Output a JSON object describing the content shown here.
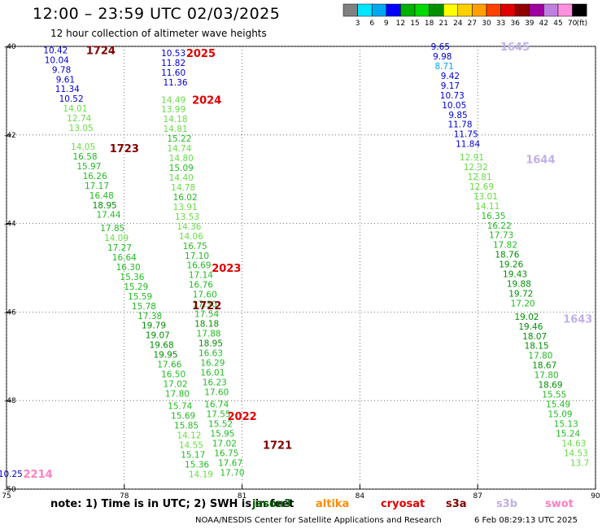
{
  "header": {
    "title": "12:00 – 23:59 UTC 02/03/2025",
    "subtitle": "12 hour collection of altimeter wave heights"
  },
  "color_scale": {
    "labels": [
      "3",
      "6",
      "9",
      "12",
      "15",
      "18",
      "21",
      "24",
      "27",
      "30",
      "33",
      "36",
      "39",
      "42",
      "45",
      "70"
    ],
    "unit": "(ft)",
    "colors": [
      "#808080",
      "#00e5ff",
      "#00a8f0",
      "#0000ff",
      "#00b000",
      "#00d800",
      "#009000",
      "#ffff00",
      "#ffd000",
      "#ffa000",
      "#ff4000",
      "#e00000",
      "#900000",
      "#a000a0",
      "#c080e0",
      "#ff90e0",
      "#000000"
    ]
  },
  "axes": {
    "lat_labels": [
      {
        "text": "-40",
        "lat": -40
      },
      {
        "text": "-42",
        "lat": -42
      },
      {
        "text": "-44",
        "lat": -44
      },
      {
        "text": "-46",
        "lat": -46
      },
      {
        "text": "-48",
        "lat": -48
      },
      {
        "text": "-50",
        "lat": -50
      }
    ],
    "lon_labels": [
      {
        "text": "75",
        "lon": 75
      },
      {
        "text": "78",
        "lon": 78
      },
      {
        "text": "81",
        "lon": 81
      },
      {
        "text": "84",
        "lon": 84
      },
      {
        "text": "87",
        "lon": 87
      },
      {
        "text": "90",
        "lon": 90
      }
    ]
  },
  "time_labels": [
    {
      "text": "1724",
      "lon": 77.4,
      "lat": -40.08,
      "color": "#800000"
    },
    {
      "text": "2025",
      "lon": 79.95,
      "lat": -40.15,
      "color": "#e00000"
    },
    {
      "text": "2024",
      "lon": 80.1,
      "lat": -41.2,
      "color": "#e00000"
    },
    {
      "text": "1723",
      "lon": 78.0,
      "lat": -42.3,
      "color": "#800000"
    },
    {
      "text": "2023",
      "lon": 80.6,
      "lat": -45.0,
      "color": "#e00000"
    },
    {
      "text": "1722",
      "lon": 80.1,
      "lat": -45.85,
      "color": "#800000"
    },
    {
      "text": "2022",
      "lon": 81.0,
      "lat": -48.35,
      "color": "#e00000"
    },
    {
      "text": "1721",
      "lon": 81.9,
      "lat": -49.0,
      "color": "#800000"
    },
    {
      "text": "1645",
      "lon": 87.95,
      "lat": -40.0,
      "color": "#c0b0e8"
    },
    {
      "text": "1644",
      "lon": 88.6,
      "lat": -42.55,
      "color": "#c0b0e8"
    },
    {
      "text": "1643",
      "lon": 89.55,
      "lat": -46.15,
      "color": "#c0b0e8"
    },
    {
      "text": "2214",
      "lon": 75.8,
      "lat": -49.65,
      "color": "#ff80c0"
    }
  ],
  "tracks": [
    {
      "name": "1724",
      "points": [
        {
          "v": "10.42",
          "lon": 76.25,
          "lat": -40.08
        },
        {
          "v": "10.04",
          "lon": 76.28,
          "lat": -40.3
        },
        {
          "v": "9.78",
          "lon": 76.4,
          "lat": -40.52
        },
        {
          "v": "9.61",
          "lon": 76.5,
          "lat": -40.74
        },
        {
          "v": "11.34",
          "lon": 76.55,
          "lat": -40.96
        },
        {
          "v": "10.52",
          "lon": 76.65,
          "lat": -41.18
        },
        {
          "v": "14.01",
          "lon": 76.75,
          "lat": -41.4
        },
        {
          "v": "12.74",
          "lon": 76.85,
          "lat": -41.62
        },
        {
          "v": "13.05",
          "lon": 76.9,
          "lat": -41.84
        },
        {
          "v": "14.05",
          "lon": 76.95,
          "lat": -42.26
        },
        {
          "v": "16.58",
          "lon": 77.0,
          "lat": -42.48
        },
        {
          "v": "15.97",
          "lon": 77.1,
          "lat": -42.7
        },
        {
          "v": "16.26",
          "lon": 77.25,
          "lat": -42.92
        },
        {
          "v": "17.17",
          "lon": 77.3,
          "lat": -43.14
        },
        {
          "v": "16.48",
          "lon": 77.42,
          "lat": -43.36
        },
        {
          "v": "18.95",
          "lon": 77.5,
          "lat": -43.58
        },
        {
          "v": "17.44",
          "lon": 77.6,
          "lat": -43.8
        },
        {
          "v": "17.85",
          "lon": 77.7,
          "lat": -44.1
        },
        {
          "v": "14.09",
          "lon": 77.8,
          "lat": -44.32
        },
        {
          "v": "17.27",
          "lon": 77.88,
          "lat": -44.54
        },
        {
          "v": "16.64",
          "lon": 78.0,
          "lat": -44.76
        },
        {
          "v": "16.30",
          "lon": 78.1,
          "lat": -44.98
        },
        {
          "v": "15.36",
          "lon": 78.2,
          "lat": -45.2
        },
        {
          "v": "15.29",
          "lon": 78.3,
          "lat": -45.42
        },
        {
          "v": "15.59",
          "lon": 78.4,
          "lat": -45.64
        },
        {
          "v": "15.78",
          "lon": 78.5,
          "lat": -45.86
        },
        {
          "v": "17.38",
          "lon": 78.65,
          "lat": -46.08
        },
        {
          "v": "19.79",
          "lon": 78.75,
          "lat": -46.3
        },
        {
          "v": "19.07",
          "lon": 78.85,
          "lat": -46.52
        },
        {
          "v": "19.68",
          "lon": 78.95,
          "lat": -46.74
        },
        {
          "v": "19.95",
          "lon": 79.05,
          "lat": -46.96
        },
        {
          "v": "17.66",
          "lon": 79.15,
          "lat": -47.18
        },
        {
          "v": "16.50",
          "lon": 79.25,
          "lat": -47.4
        },
        {
          "v": "17.02",
          "lon": 79.3,
          "lat": -47.62
        },
        {
          "v": "17.80",
          "lon": 79.35,
          "lat": -47.84
        },
        {
          "v": "15.74",
          "lon": 79.42,
          "lat": -48.12
        },
        {
          "v": "15.69",
          "lon": 79.5,
          "lat": -48.34
        },
        {
          "v": "15.85",
          "lon": 79.58,
          "lat": -48.56
        },
        {
          "v": "14.12",
          "lon": 79.65,
          "lat": -48.78
        },
        {
          "v": "14.55",
          "lon": 79.7,
          "lat": -49.0
        },
        {
          "v": "15.17",
          "lon": 79.75,
          "lat": -49.22
        },
        {
          "v": "15.36",
          "lon": 79.85,
          "lat": -49.44
        },
        {
          "v": "14.19",
          "lon": 79.95,
          "lat": -49.66
        }
      ]
    },
    {
      "name": "2025",
      "points": [
        {
          "v": "10.53",
          "lon": 79.25,
          "lat": -40.15
        },
        {
          "v": "11.82",
          "lon": 79.25,
          "lat": -40.37
        },
        {
          "v": "11.60",
          "lon": 79.25,
          "lat": -40.59
        },
        {
          "v": "11.36",
          "lon": 79.3,
          "lat": -40.81
        },
        {
          "v": "14.49",
          "lon": 79.25,
          "lat": -41.2
        },
        {
          "v": "13.99",
          "lon": 79.25,
          "lat": -41.42
        },
        {
          "v": "14.18",
          "lon": 79.3,
          "lat": -41.64
        },
        {
          "v": "14.81",
          "lon": 79.3,
          "lat": -41.86
        },
        {
          "v": "15.22",
          "lon": 79.4,
          "lat": -42.08
        },
        {
          "v": "14.74",
          "lon": 79.4,
          "lat": -42.3
        },
        {
          "v": "14.80",
          "lon": 79.45,
          "lat": -42.52
        },
        {
          "v": "15.09",
          "lon": 79.45,
          "lat": -42.74
        },
        {
          "v": "14.40",
          "lon": 79.45,
          "lat": -42.96
        },
        {
          "v": "14.78",
          "lon": 79.5,
          "lat": -43.18
        },
        {
          "v": "16.02",
          "lon": 79.55,
          "lat": -43.4
        },
        {
          "v": "13.91",
          "lon": 79.55,
          "lat": -43.62
        },
        {
          "v": "13.53",
          "lon": 79.6,
          "lat": -43.84
        },
        {
          "v": "14.36",
          "lon": 79.65,
          "lat": -44.06
        },
        {
          "v": "14.06",
          "lon": 79.7,
          "lat": -44.28
        },
        {
          "v": "16.75",
          "lon": 79.8,
          "lat": -44.5
        },
        {
          "v": "17.10",
          "lon": 79.85,
          "lat": -44.72
        },
        {
          "v": "16.69",
          "lon": 79.9,
          "lat": -44.94
        },
        {
          "v": "17.14",
          "lon": 79.95,
          "lat": -45.16
        },
        {
          "v": "16.76",
          "lon": 79.95,
          "lat": -45.38
        },
        {
          "v": "17.60",
          "lon": 80.05,
          "lat": -45.6
        },
        {
          "v": "17.30",
          "lon": 80.05,
          "lat": -45.82
        },
        {
          "v": "17.54",
          "lon": 80.1,
          "lat": -46.04
        },
        {
          "v": "18.18",
          "lon": 80.1,
          "lat": -46.26
        },
        {
          "v": "17.88",
          "lon": 80.15,
          "lat": -46.48
        },
        {
          "v": "18.95",
          "lon": 80.2,
          "lat": -46.7
        },
        {
          "v": "16.63",
          "lon": 80.2,
          "lat": -46.92
        },
        {
          "v": "16.29",
          "lon": 80.25,
          "lat": -47.14
        },
        {
          "v": "16.01",
          "lon": 80.25,
          "lat": -47.36
        },
        {
          "v": "16.23",
          "lon": 80.3,
          "lat": -47.58
        },
        {
          "v": "17.60",
          "lon": 80.35,
          "lat": -47.8
        },
        {
          "v": "16.74",
          "lon": 80.35,
          "lat": -48.08
        },
        {
          "v": "17.55",
          "lon": 80.4,
          "lat": -48.3
        },
        {
          "v": "15.52",
          "lon": 80.45,
          "lat": -48.52
        },
        {
          "v": "15.95",
          "lon": 80.5,
          "lat": -48.74
        },
        {
          "v": "17.02",
          "lon": 80.55,
          "lat": -48.96
        },
        {
          "v": "16.75",
          "lon": 80.6,
          "lat": -49.18
        },
        {
          "v": "17.67",
          "lon": 80.7,
          "lat": -49.4
        },
        {
          "v": "17.70",
          "lon": 80.75,
          "lat": -49.62
        }
      ]
    },
    {
      "name": "1645",
      "points": [
        {
          "v": "9.65",
          "lon": 86.05,
          "lat": -40.0
        },
        {
          "v": "9.98",
          "lon": 86.1,
          "lat": -40.22
        },
        {
          "v": "8.71",
          "lon": 86.15,
          "lat": -40.44
        },
        {
          "v": "9.42",
          "lon": 86.3,
          "lat": -40.66
        },
        {
          "v": "9.17",
          "lon": 86.3,
          "lat": -40.88
        },
        {
          "v": "10.73",
          "lon": 86.35,
          "lat": -41.1
        },
        {
          "v": "10.05",
          "lon": 86.4,
          "lat": -41.32
        },
        {
          "v": "9.85",
          "lon": 86.5,
          "lat": -41.54
        },
        {
          "v": "11.78",
          "lon": 86.55,
          "lat": -41.76
        },
        {
          "v": "11.75",
          "lon": 86.7,
          "lat": -41.98
        },
        {
          "v": "11.84",
          "lon": 86.75,
          "lat": -42.2
        },
        {
          "v": "12.91",
          "lon": 86.85,
          "lat": -42.5
        },
        {
          "v": "12.32",
          "lon": 86.95,
          "lat": -42.72
        },
        {
          "v": "12.81",
          "lon": 87.05,
          "lat": -42.94
        },
        {
          "v": "12.69",
          "lon": 87.1,
          "lat": -43.16
        },
        {
          "v": "13.01",
          "lon": 87.2,
          "lat": -43.38
        },
        {
          "v": "14.11",
          "lon": 87.25,
          "lat": -43.6
        },
        {
          "v": "16.35",
          "lon": 87.4,
          "lat": -43.82
        },
        {
          "v": "16.22",
          "lon": 87.55,
          "lat": -44.04
        },
        {
          "v": "17.73",
          "lon": 87.6,
          "lat": -44.26
        },
        {
          "v": "17.82",
          "lon": 87.7,
          "lat": -44.48
        },
        {
          "v": "18.76",
          "lon": 87.75,
          "lat": -44.7
        },
        {
          "v": "19.26",
          "lon": 87.85,
          "lat": -44.92
        },
        {
          "v": "19.43",
          "lon": 87.95,
          "lat": -45.14
        },
        {
          "v": "19.88",
          "lon": 88.05,
          "lat": -45.36
        },
        {
          "v": "19.72",
          "lon": 88.1,
          "lat": -45.58
        },
        {
          "v": "17.20",
          "lon": 88.15,
          "lat": -45.8
        },
        {
          "v": "19.02",
          "lon": 88.25,
          "lat": -46.1
        },
        {
          "v": "19.46",
          "lon": 88.35,
          "lat": -46.32
        },
        {
          "v": "18.07",
          "lon": 88.45,
          "lat": -46.54
        },
        {
          "v": "18.15",
          "lon": 88.5,
          "lat": -46.76
        },
        {
          "v": "17.80",
          "lon": 88.6,
          "lat": -46.98
        },
        {
          "v": "18.67",
          "lon": 88.7,
          "lat": -47.2
        },
        {
          "v": "17.80",
          "lon": 88.75,
          "lat": -47.42
        },
        {
          "v": "18.69",
          "lon": 88.85,
          "lat": -47.64
        },
        {
          "v": "15.55",
          "lon": 88.95,
          "lat": -47.86
        },
        {
          "v": "15.49",
          "lon": 89.05,
          "lat": -48.08
        },
        {
          "v": "15.09",
          "lon": 89.1,
          "lat": -48.3
        },
        {
          "v": "15.13",
          "lon": 89.25,
          "lat": -48.52
        },
        {
          "v": "15.24",
          "lon": 89.3,
          "lat": -48.74
        },
        {
          "v": "14.63",
          "lon": 89.45,
          "lat": -48.96
        },
        {
          "v": "14.53",
          "lon": 89.5,
          "lat": -49.18
        },
        {
          "v": "13.7",
          "lon": 89.6,
          "lat": -49.4
        }
      ]
    },
    {
      "name": "2214",
      "points": [
        {
          "v": "10.25",
          "lon": 75.1,
          "lat": -49.65
        }
      ]
    }
  ],
  "footer": {
    "note": "note:  1) Time is in UTC;  2) SWH is in feet",
    "missions": [
      {
        "name": "jason3",
        "color": "#006000"
      },
      {
        "name": "altika",
        "color": "#ff8c00"
      },
      {
        "name": "cryosat",
        "color": "#e00000"
      },
      {
        "name": "s3a",
        "color": "#800000"
      },
      {
        "name": "s3b",
        "color": "#c0b0e8"
      },
      {
        "name": "swot",
        "color": "#ff80c0"
      }
    ],
    "credit": "NOAA/NESDIS Center for Satellite Applications and Research",
    "timestamp": "6 Feb 08:29:13 UTC 2025"
  }
}
